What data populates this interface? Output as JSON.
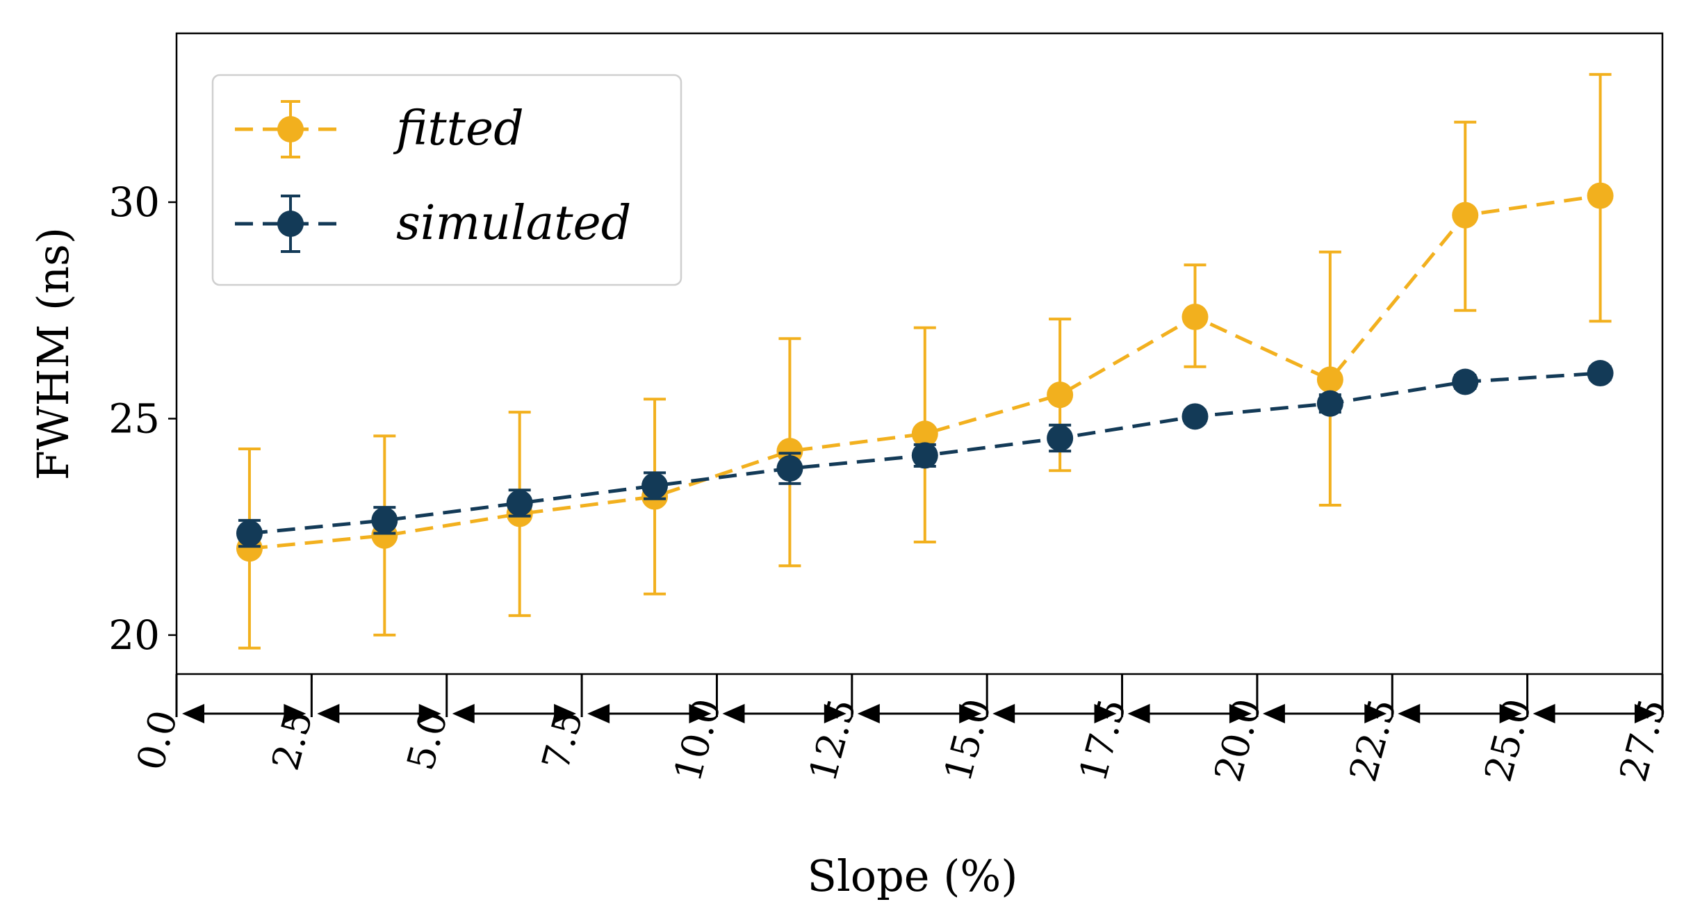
{
  "chart_data": {
    "type": "line",
    "title": "",
    "xlabel": "Slope (%)",
    "ylabel": "FWHM (ns)",
    "xlim": [
      0,
      27.5
    ],
    "ylim": [
      19.1,
      33.9
    ],
    "yticks": [
      20,
      25,
      30
    ],
    "ytick_labels": [
      "20",
      "25",
      "30"
    ],
    "xticks": [
      0,
      2.5,
      5,
      7.5,
      10,
      12.5,
      15,
      17.5,
      20,
      22.5,
      25,
      27.5
    ],
    "xtick_labels": [
      "0.0",
      "2.5",
      "5.0",
      "7.5",
      "10.0",
      "12.5",
      "15.0",
      "17.5",
      "20.0",
      "22.5",
      "25.0",
      "27.5"
    ],
    "bin_edges": [
      0,
      2.5,
      5,
      7.5,
      10,
      12.5,
      15,
      17.5,
      20,
      22.5,
      25,
      27.5
    ],
    "x": [
      1.35,
      3.85,
      6.35,
      8.85,
      11.35,
      13.85,
      16.35,
      18.85,
      21.35,
      23.85,
      26.35
    ],
    "series": [
      {
        "name": "fitted",
        "color": "#F2B01E",
        "values": [
          22.0,
          22.3,
          22.8,
          23.2,
          24.25,
          24.65,
          25.55,
          27.35,
          25.9,
          29.7,
          30.15
        ],
        "err_lower": [
          2.3,
          2.3,
          2.35,
          2.25,
          2.65,
          2.5,
          1.75,
          1.15,
          2.9,
          2.2,
          2.9
        ],
        "err_upper": [
          2.3,
          2.3,
          2.35,
          2.25,
          2.6,
          2.45,
          1.75,
          1.2,
          2.95,
          2.15,
          2.8
        ]
      },
      {
        "name": "simulated",
        "color": "#133A57",
        "values": [
          22.35,
          22.65,
          23.05,
          23.45,
          23.85,
          24.15,
          24.55,
          25.05,
          25.35,
          25.85,
          26.05
        ],
        "err_lower": [
          0.3,
          0.3,
          0.3,
          0.3,
          0.35,
          0.25,
          0.3,
          0.15,
          0.2,
          0.15,
          0.15
        ],
        "err_upper": [
          0.3,
          0.3,
          0.3,
          0.3,
          0.35,
          0.25,
          0.3,
          0.15,
          0.2,
          0.15,
          0.15
        ]
      }
    ],
    "legend": {
      "position": "top-left",
      "entries": [
        "fitted",
        "simulated"
      ]
    },
    "grid": false
  }
}
